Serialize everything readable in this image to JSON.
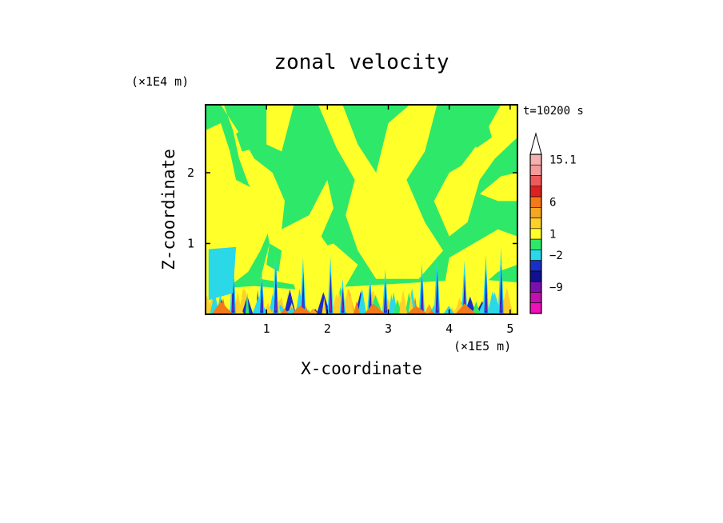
{
  "chart_data": {
    "type": "heatmap",
    "title": "zonal velocity",
    "xlabel": "X-coordinate",
    "ylabel": "Z-coordinate",
    "x_unit": "(×1E5 m)",
    "y_unit": "(×1E4 m)",
    "time_label": "t=10200 s",
    "xlim": [
      0,
      5.12
    ],
    "ylim": [
      0,
      2.96
    ],
    "x_ticks": [
      1,
      2,
      3,
      4,
      5
    ],
    "y_ticks": [
      1,
      2
    ],
    "colorbar": {
      "levels": [
        {
          "label": "15.1",
          "color": "#f7b0b0"
        },
        {
          "label": "",
          "color": "#f49a9a"
        },
        {
          "label": "",
          "color": "#ee5a5a"
        },
        {
          "label": "",
          "color": "#e02020"
        },
        {
          "label": "6",
          "color": "#f27a18"
        },
        {
          "label": "",
          "color": "#f5a623"
        },
        {
          "label": "",
          "color": "#ffd02a"
        },
        {
          "label": "1",
          "color": "#ffff2a"
        },
        {
          "label": "",
          "color": "#2ee86a"
        },
        {
          "label": "-2",
          "color": "#2ad8e8"
        },
        {
          "label": "",
          "color": "#1a2ec8"
        },
        {
          "label": "",
          "color": "#101090"
        },
        {
          "label": "-9",
          "color": "#7a10b0"
        },
        {
          "label": "",
          "color": "#c010b0"
        },
        {
          "label": "",
          "color": "#f010b8"
        }
      ]
    },
    "dominant_regions": [
      {
        "value_band": "0 to 1",
        "color": "#ffff2a"
      },
      {
        "value_band": "-1 to 0",
        "color": "#2ee86a"
      }
    ]
  }
}
